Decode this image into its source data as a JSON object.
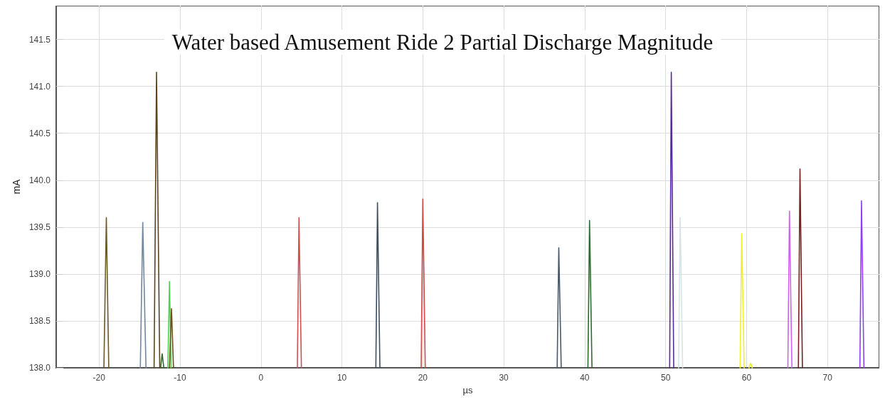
{
  "chart_data": {
    "type": "line",
    "title": "Water based Amusement Ride 2 Partial Discharge Magnitude",
    "xlabel": "µs",
    "ylabel": "mA",
    "xlim": [
      -25.3,
      76.4
    ],
    "ylim": [
      138,
      141.86
    ],
    "xticks": [
      -20,
      -10,
      0,
      10,
      20,
      30,
      40,
      50,
      60,
      70
    ],
    "yticks": [
      {
        "value": 138,
        "label": "138.0"
      },
      138.5,
      {
        "value": 139,
        "label": "139.0"
      },
      139.5,
      {
        "value": 140,
        "label": "140.0"
      },
      140.5,
      {
        "value": 141,
        "label": "141.0"
      },
      141.5
    ],
    "grid": true,
    "marker": "none",
    "line_style": "solid",
    "series": [
      {
        "color": "#6b5a2a",
        "x": [
          -19.4,
          -19.1,
          -18.8
        ],
        "values": [
          138,
          139.6,
          138
        ]
      },
      {
        "color": "#7088a0",
        "x": [
          -14.9,
          -14.6,
          -14.2
        ],
        "values": [
          138,
          139.55,
          138
        ]
      },
      {
        "color": "#2e6b2e",
        "x": [
          -12.4,
          -12.2,
          -12.0
        ],
        "values": [
          138,
          138.15,
          138
        ]
      },
      {
        "color": "#55cc55",
        "x": [
          -11.5,
          -11.3,
          -11.1
        ],
        "values": [
          138,
          138.92,
          138
        ]
      },
      {
        "color": "#6b5020",
        "x": [
          -11.3,
          -11.05,
          -10.8
        ],
        "values": [
          138,
          138.63,
          138
        ]
      },
      {
        "color": "#5c4420",
        "x": [
          -13.2,
          -12.9,
          -12.5
        ],
        "values": [
          138,
          141.15,
          138
        ]
      },
      {
        "color": "#d05050",
        "x": [
          4.5,
          4.7,
          5.0
        ],
        "values": [
          138,
          139.6,
          138
        ]
      },
      {
        "color": "#3e4f60",
        "x": [
          14.2,
          14.4,
          14.7
        ],
        "values": [
          138,
          139.76,
          138
        ]
      },
      {
        "color": "#d04848",
        "x": [
          19.8,
          20.0,
          20.3
        ],
        "values": [
          138,
          139.8,
          138
        ]
      },
      {
        "color": "#4a5a68",
        "x": [
          36.6,
          36.8,
          37.1
        ],
        "values": [
          138,
          139.28,
          138
        ]
      },
      {
        "color": "#2e6b2e",
        "x": [
          40.4,
          40.6,
          40.9
        ],
        "values": [
          138,
          139.57,
          138
        ]
      },
      {
        "color": "#d6e4e4",
        "x": [
          51.6,
          51.8,
          52.1
        ],
        "values": [
          138,
          139.6,
          138
        ]
      },
      {
        "color": "#5b2a9a",
        "x": [
          50.5,
          50.7,
          51.0
        ],
        "values": [
          138,
          141.15,
          138
        ]
      },
      {
        "color": "#f0f030",
        "x": [
          59.2,
          59.4,
          59.7
        ],
        "values": [
          138,
          139.43,
          138
        ]
      },
      {
        "color": "#f0f030",
        "x": [
          60.3,
          60.5,
          60.7
        ],
        "values": [
          138,
          138.05,
          138
        ]
      },
      {
        "color": "#d060f0",
        "x": [
          65.1,
          65.3,
          65.6
        ],
        "values": [
          138,
          139.67,
          138
        ]
      },
      {
        "color": "#7a2020",
        "x": [
          66.4,
          66.6,
          66.9
        ],
        "values": [
          138,
          140.12,
          138
        ]
      },
      {
        "color": "#9040f0",
        "x": [
          74.0,
          74.2,
          74.5
        ],
        "values": [
          138,
          139.78,
          138
        ]
      }
    ]
  }
}
